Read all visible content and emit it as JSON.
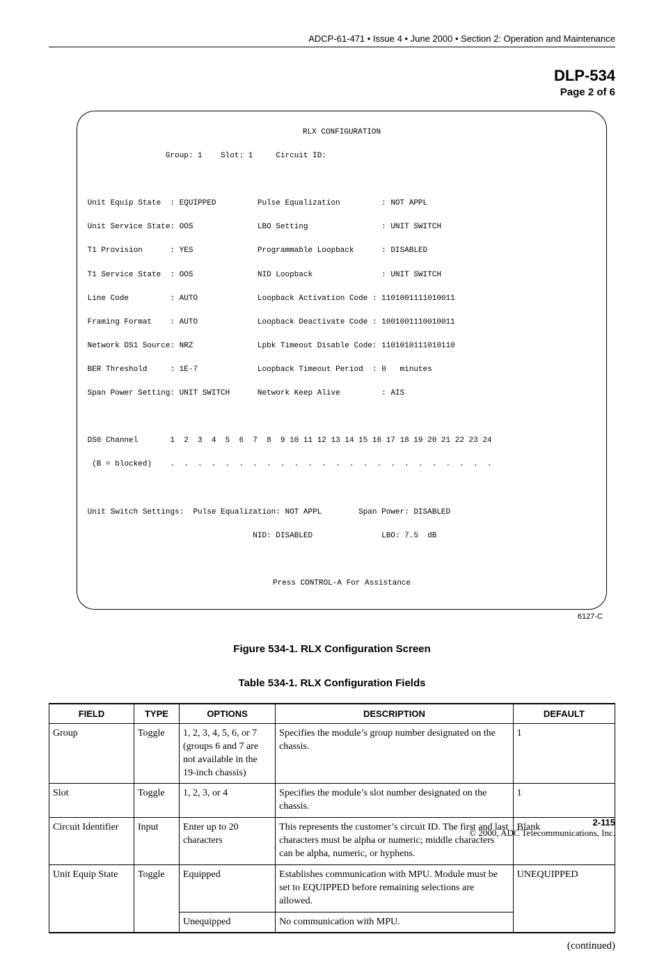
{
  "header": {
    "text": "ADCP-61-471 • Issue 4 • June 2000 • Section 2: Operation and Maintenance"
  },
  "dlp": {
    "title": "DLP-534",
    "page": "Page 2 of 6"
  },
  "terminal": {
    "title": "RLX CONFIGURATION",
    "group_label": "Group:",
    "group_value": "1",
    "slot_label": "Slot:",
    "slot_value": "1",
    "circuit_id_label": "Circuit ID:",
    "left": {
      "f1l": "Unit Equip State",
      "f1v": "EQUIPPED",
      "f2l": "Unit Service State",
      "f2v": "OOS",
      "f3l": "T1 Provision",
      "f3v": "YES",
      "f4l": "T1 Service State",
      "f4v": "OOS",
      "f5l": "Line Code",
      "f5v": "AUTO",
      "f6l": "Framing Format",
      "f6v": "AUTO",
      "f7l": "Network DS1 Source",
      "f7v": "NRZ",
      "f8l": "BER Threshold",
      "f8v": "1E-7",
      "f9l": "Span Power Setting",
      "f9v": "UNIT SWITCH"
    },
    "right": {
      "f1l": "Pulse Equalization",
      "f1v": "NOT APPL",
      "f2l": "LBO Setting",
      "f2v": "UNIT SWITCH",
      "f3l": "Programmable Loopback",
      "f3v": "DISABLED",
      "f4l": "NID Loopback",
      "f4v": "UNIT SWITCH",
      "f5l": "Loopback Activation Code",
      "f5v": "1101001111010011",
      "f6l": "Loopback Deactivate Code",
      "f6v": "1001001110010011",
      "f7l": "Lpbk Timeout Disable Code",
      "f7v": "1101010111010110",
      "f8l": "Loopback Timeout Period",
      "f8v": "0   minutes",
      "f9l": "Network Keep Alive",
      "f9v": "AIS"
    },
    "ds0_label": "DS0 Channel",
    "ds0_channels": "1  2  3  4  5  6  7  8  9 10 11 12 13 14 15 16 17 18 19 20 21 22 23 24",
    "ds0_blocked": "(B = blocked)",
    "ds0_dots": ".  .  .  .  .  .  .  .  .  .  .  .  .  .  .  .  .  .  .  .  .  .  .  .",
    "uss_label": "Unit Switch Settings:",
    "uss_pe_label": "Pulse Equalization:",
    "uss_pe_value": "NOT APPL",
    "uss_sp_label": "Span Power:",
    "uss_sp_value": "DISABLED",
    "uss_nid_label": "NID:",
    "uss_nid_value": "DISABLED",
    "uss_lbo_label": "LBO:",
    "uss_lbo_value": "7.5  dB",
    "help_line": "Press CONTROL-A For Assistance",
    "tag": "6127-C"
  },
  "figure_caption": "Figure 534-1. RLX Configuration Screen",
  "table_caption": "Table 534-1. RLX Configuration Fields",
  "table": {
    "headers": {
      "field": "FIELD",
      "type": "TYPE",
      "options": "OPTIONS",
      "description": "DESCRIPTION",
      "default": "DEFAULT"
    },
    "rows": [
      {
        "field": "Group",
        "type": "Toggle",
        "options": "1, 2, 3, 4, 5, 6, or 7 (groups 6 and 7 are not available in the 19-inch chassis)",
        "description": "Specifies the module’s group number designated on the chassis.",
        "default": "1"
      },
      {
        "field": "Slot",
        "type": "Toggle",
        "options": "1, 2, 3, or 4",
        "description": "Specifies the module’s slot number designated on the chassis.",
        "default": "1"
      },
      {
        "field": "Circuit Identifier",
        "type": "Input",
        "options": "Enter up to 20 characters",
        "description": "This represents the customer’s circuit ID. The first and last characters must be alpha or numeric; middle characters can be alpha, numeric, or hyphens.",
        "default": "Blank"
      },
      {
        "field": "Unit Equip State",
        "type": "Toggle",
        "options": "Equipped",
        "description": "Establishes communication with MPU. Module must be set to EQUIPPED before remaining selections are allowed.",
        "default": "UNEQUIPPED"
      },
      {
        "field": "",
        "type": "",
        "options": "Unequipped",
        "description": "No communication with MPU.",
        "default": ""
      }
    ]
  },
  "continued": "(continued)",
  "footer": {
    "page_number": "2-115",
    "copyright": "© 2000, ADC Telecommunications, Inc."
  }
}
